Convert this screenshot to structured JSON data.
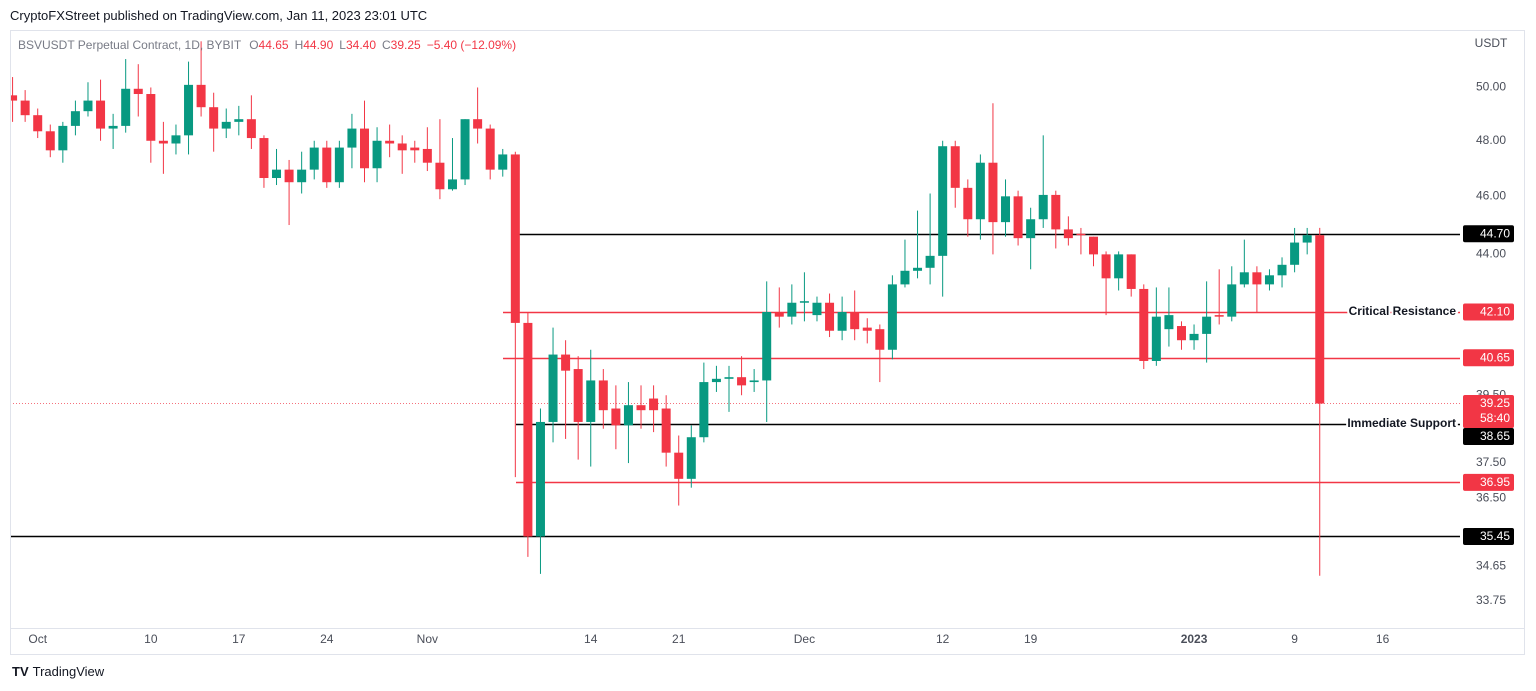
{
  "header": {
    "publisher": "CryptoFXStreet published on TradingView.com, Jan 11, 2023 23:01 UTC"
  },
  "footer": {
    "brand": "TradingView"
  },
  "chart_data": {
    "type": "candlestick",
    "symbol": "BSVUSDT Perpetual Contract, 1D, BYBIT",
    "ohlc_legend": [
      {
        "key": "O",
        "value": "44.65"
      },
      {
        "key": "H",
        "value": "44.90"
      },
      {
        "key": "L",
        "value": "34.40"
      },
      {
        "key": "C",
        "value": "39.25"
      }
    ],
    "change": "−5.40 (−12.09%)",
    "currency": "USDT",
    "up_color": "#089981",
    "down_color": "#f23645",
    "log_scale": true,
    "grid": false,
    "xlim": [
      "2022-09-28",
      "2023-01-22"
    ],
    "ylim": [
      33.05,
      52.25
    ],
    "yticks": [
      {
        "value": 50,
        "label": "50.00"
      },
      {
        "value": 48,
        "label": "48.00"
      },
      {
        "value": 46,
        "label": "46.00"
      },
      {
        "value": 44,
        "label": "44.00"
      },
      {
        "value": 39.5,
        "label": "39.50"
      },
      {
        "value": 37.5,
        "label": "37.50"
      },
      {
        "value": 36.5,
        "label": "36.50"
      },
      34.65,
      33.75
    ],
    "xticks": [
      {
        "value": "2022-10-01",
        "label": "Oct"
      },
      {
        "value": "2022-10-10",
        "label": "10"
      },
      {
        "value": "2022-10-17",
        "label": "17"
      },
      {
        "value": "2022-10-24",
        "label": "24"
      },
      {
        "value": "2022-11-01",
        "label": "Nov"
      },
      {
        "value": "2022-11-14",
        "label": "14"
      },
      {
        "value": "2022-11-21",
        "label": "21"
      },
      {
        "value": "2022-12-01",
        "label": "Dec"
      },
      {
        "value": "2022-12-12",
        "label": "12"
      },
      {
        "value": "2022-12-19",
        "label": "19"
      },
      {
        "value": "2023-01-01",
        "label": "2023"
      },
      {
        "value": "2023-01-09",
        "label": "9"
      },
      {
        "value": "2023-01-16",
        "label": "16"
      }
    ],
    "levels": [
      {
        "value": 44.7,
        "label": "44.70",
        "color": "#000000"
      },
      {
        "value": 42.1,
        "label": "42.10",
        "color": "#f23645",
        "text": "Critical Resistance"
      },
      {
        "value": 40.65,
        "label": "40.65",
        "color": "#f23645"
      },
      {
        "value": 38.65,
        "label": "38.65",
        "color": "#000000",
        "text": "Immediate Support"
      },
      {
        "value": 36.95,
        "label": "36.95",
        "color": "#f23645"
      },
      {
        "value": 35.45,
        "label": "35.45",
        "color": "#000000"
      }
    ],
    "last_price": {
      "value": 39.25,
      "label": "39.25",
      "countdown": "58:40",
      "color": "#f23645"
    },
    "x": [
      "2022-09-29",
      "2022-09-30",
      "2022-10-01",
      "2022-10-02",
      "2022-10-03",
      "2022-10-04",
      "2022-10-05",
      "2022-10-06",
      "2022-10-07",
      "2022-10-08",
      "2022-10-09",
      "2022-10-10",
      "2022-10-11",
      "2022-10-12",
      "2022-10-13",
      "2022-10-14",
      "2022-10-15",
      "2022-10-16",
      "2022-10-17",
      "2022-10-18",
      "2022-10-19",
      "2022-10-20",
      "2022-10-21",
      "2022-10-22",
      "2022-10-23",
      "2022-10-24",
      "2022-10-25",
      "2022-10-26",
      "2022-10-27",
      "2022-10-28",
      "2022-10-29",
      "2022-10-30",
      "2022-10-31",
      "2022-11-01",
      "2022-11-02",
      "2022-11-03",
      "2022-11-04",
      "2022-11-05",
      "2022-11-06",
      "2022-11-07",
      "2022-11-08",
      "2022-11-09",
      "2022-11-10",
      "2022-11-11",
      "2022-11-12",
      "2022-11-13",
      "2022-11-14",
      "2022-11-15",
      "2022-11-16",
      "2022-11-17",
      "2022-11-18",
      "2022-11-19",
      "2022-11-20",
      "2022-11-21",
      "2022-11-22",
      "2022-11-23",
      "2022-11-24",
      "2022-11-25",
      "2022-11-26",
      "2022-11-27",
      "2022-11-28",
      "2022-11-29",
      "2022-11-30",
      "2022-12-01",
      "2022-12-02",
      "2022-12-03",
      "2022-12-04",
      "2022-12-05",
      "2022-12-06",
      "2022-12-07",
      "2022-12-08",
      "2022-12-09",
      "2022-12-10",
      "2022-12-11",
      "2022-12-12",
      "2022-12-13",
      "2022-12-14",
      "2022-12-15",
      "2022-12-16",
      "2022-12-17",
      "2022-12-18",
      "2022-12-19",
      "2022-12-20",
      "2022-12-21",
      "2022-12-22",
      "2022-12-23",
      "2022-12-24",
      "2022-12-25",
      "2022-12-26",
      "2022-12-27",
      "2022-12-28",
      "2022-12-29",
      "2022-12-30",
      "2022-12-31",
      "2023-01-01",
      "2023-01-02",
      "2023-01-03",
      "2023-01-04",
      "2023-01-05",
      "2023-01-06",
      "2023-01-07",
      "2023-01-08",
      "2023-01-09",
      "2023-01-10",
      "2023-01-11"
    ],
    "open": [
      49.7,
      49.5,
      48.95,
      48.35,
      47.65,
      48.55,
      49.1,
      49.5,
      48.45,
      48.55,
      49.95,
      49.75,
      48.0,
      47.9,
      48.2,
      50.1,
      49.25,
      48.45,
      48.7,
      48.8,
      48.1,
      46.65,
      46.95,
      46.5,
      46.95,
      47.75,
      46.5,
      47.75,
      48.45,
      47.0,
      48.0,
      47.9,
      47.75,
      47.7,
      47.2,
      46.25,
      46.6,
      48.8,
      48.45,
      46.95,
      47.5,
      41.75,
      35.45,
      38.7,
      40.75,
      40.3,
      38.7,
      39.95,
      39.1,
      38.6,
      39.2,
      39.4,
      39.1,
      37.8,
      37.05,
      38.25,
      39.9,
      40.0,
      40.05,
      39.9,
      39.95,
      42.1,
      41.95,
      42.4,
      42.0,
      42.4,
      41.5,
      42.1,
      41.6,
      41.55,
      40.9,
      43.0,
      43.45,
      43.55,
      43.95,
      47.8,
      46.3,
      45.2,
      47.2,
      45.1,
      46.0,
      44.55,
      45.2,
      46.05,
      44.85,
      44.7,
      44.6,
      44.0,
      43.2,
      44.0,
      42.85,
      40.55,
      41.55,
      41.65,
      41.2,
      41.4,
      42.0,
      41.95,
      43.0,
      43.4,
      43.0,
      43.3,
      43.65,
      44.4,
      44.65
    ],
    "high": [
      50.4,
      49.9,
      49.2,
      48.6,
      48.7,
      49.5,
      50.2,
      50.3,
      49.0,
      51.1,
      50.9,
      50.0,
      48.7,
      48.6,
      51.0,
      51.8,
      49.8,
      49.2,
      49.3,
      49.7,
      48.2,
      47.7,
      47.3,
      47.6,
      48.0,
      48.0,
      48.0,
      49.0,
      49.5,
      48.5,
      48.6,
      48.2,
      48.0,
      48.5,
      48.8,
      48.1,
      48.8,
      50.0,
      48.6,
      47.7,
      47.6,
      42.1,
      39.1,
      41.6,
      41.2,
      40.7,
      40.9,
      40.3,
      39.8,
      39.9,
      39.8,
      39.8,
      39.5,
      38.3,
      38.6,
      40.5,
      40.4,
      40.4,
      40.7,
      40.3,
      43.1,
      42.9,
      43.0,
      43.4,
      42.6,
      42.7,
      42.6,
      42.8,
      41.9,
      41.7,
      43.3,
      44.5,
      45.5,
      46.1,
      48.0,
      48.0,
      46.6,
      47.5,
      49.4,
      46.6,
      46.2,
      45.6,
      48.2,
      46.2,
      45.3,
      44.9,
      44.6,
      44.1,
      44.1,
      44.0,
      43.0,
      42.9,
      42.9,
      41.8,
      41.7,
      43.1,
      43.5,
      43.6,
      44.5,
      43.6,
      43.5,
      43.9,
      44.9,
      44.9,
      44.9
    ],
    "low": [
      48.7,
      48.7,
      48.1,
      47.4,
      47.2,
      48.2,
      48.9,
      48.0,
      47.7,
      48.3,
      48.9,
      47.2,
      46.8,
      47.5,
      47.5,
      48.9,
      47.6,
      48.1,
      48.2,
      47.7,
      46.3,
      46.4,
      45.0,
      46.1,
      46.6,
      46.3,
      46.3,
      47.0,
      46.5,
      46.5,
      47.4,
      46.8,
      47.2,
      46.9,
      45.9,
      46.2,
      46.4,
      47.9,
      46.6,
      46.7,
      37.1,
      34.9,
      34.45,
      38.1,
      38.2,
      37.6,
      37.4,
      38.5,
      37.9,
      37.5,
      38.5,
      38.4,
      37.4,
      36.3,
      36.8,
      38.1,
      39.6,
      39.0,
      39.5,
      39.6,
      38.7,
      41.6,
      41.7,
      41.8,
      41.8,
      41.3,
      41.2,
      41.2,
      41.1,
      39.9,
      40.6,
      42.9,
      43.2,
      43.0,
      42.6,
      45.6,
      44.6,
      44.5,
      44.0,
      44.6,
      44.3,
      43.5,
      44.9,
      44.2,
      44.3,
      44.0,
      43.6,
      42.0,
      42.8,
      42.6,
      40.3,
      40.4,
      41.0,
      40.9,
      40.9,
      40.5,
      41.7,
      41.8,
      42.9,
      42.1,
      42.8,
      42.9,
      43.4,
      44.0,
      34.4
    ],
    "close": [
      49.5,
      48.95,
      48.35,
      47.65,
      48.55,
      49.1,
      49.5,
      48.45,
      48.55,
      49.95,
      49.75,
      48.0,
      47.9,
      48.2,
      50.1,
      49.25,
      48.45,
      48.7,
      48.8,
      48.1,
      46.65,
      46.95,
      46.5,
      46.95,
      47.75,
      46.5,
      47.75,
      48.45,
      47.0,
      48.0,
      47.9,
      47.65,
      47.65,
      47.2,
      46.25,
      46.6,
      48.8,
      48.45,
      46.95,
      47.5,
      41.75,
      35.45,
      38.7,
      40.75,
      40.25,
      38.7,
      39.95,
      39.05,
      38.6,
      39.2,
      39.05,
      39.05,
      37.8,
      37.05,
      38.25,
      39.9,
      40.0,
      40.05,
      39.8,
      39.95,
      42.1,
      41.95,
      42.4,
      42.45,
      42.4,
      41.5,
      42.1,
      41.55,
      41.5,
      40.9,
      43.0,
      43.45,
      43.55,
      43.95,
      47.8,
      46.3,
      45.2,
      47.2,
      45.1,
      46.0,
      44.55,
      45.2,
      46.05,
      44.85,
      44.55,
      44.65,
      44.0,
      43.2,
      44.0,
      42.85,
      40.55,
      41.95,
      42.0,
      41.2,
      41.4,
      41.95,
      41.95,
      43.0,
      43.4,
      43.0,
      43.3,
      43.65,
      44.4,
      44.65,
      39.25
    ]
  }
}
